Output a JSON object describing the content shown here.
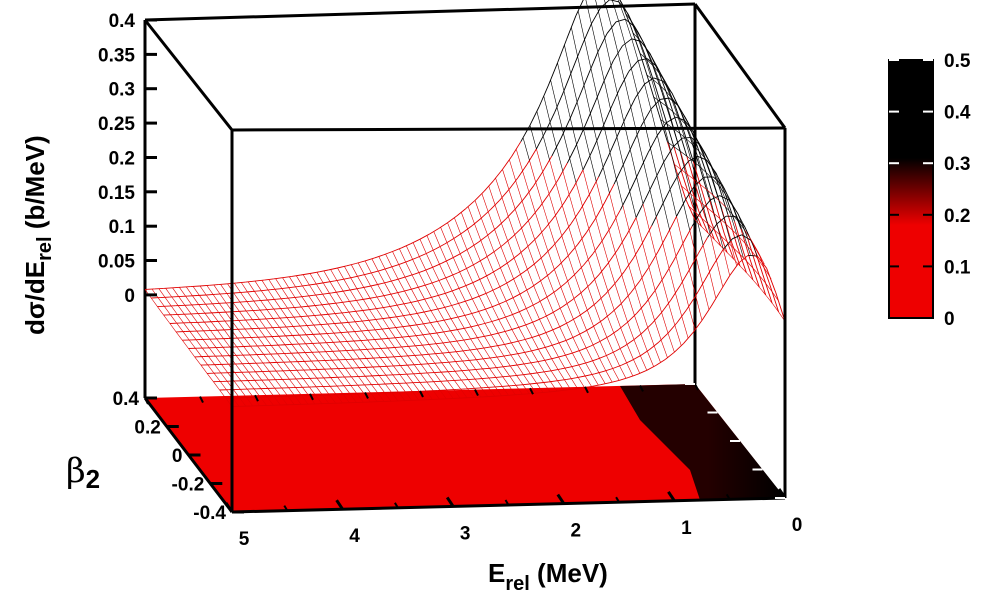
{
  "chart_data": {
    "type": "surface",
    "title": "",
    "zlabel": "dσ/dE_rel (b/MeV)",
    "zlabel_parts": {
      "main": "dσ/dE",
      "sub": "rel",
      "tail": " (b/MeV)"
    },
    "xlabel": "E_rel (MeV)",
    "xlabel_parts": {
      "main": "E",
      "sub": "rel",
      "tail": " (MeV)"
    },
    "ylabel": "β2",
    "ylabel_parts": {
      "main": "β",
      "sub": "2"
    },
    "x_ticks": [
      "5",
      "4",
      "3",
      "2",
      "1",
      "0"
    ],
    "x_tick_values": [
      5,
      4,
      3,
      2,
      1,
      0
    ],
    "y_ticks": [
      "0.4",
      "0.2",
      "0",
      "-0.2",
      "-0.4"
    ],
    "y_tick_values": [
      0.4,
      0.2,
      0,
      -0.2,
      -0.4
    ],
    "z_ticks": [
      "0.4",
      "0.35",
      "0.3",
      "0.25",
      "0.2",
      "0.15",
      "0.1",
      "0.05",
      "0"
    ],
    "z_tick_values": [
      0.4,
      0.35,
      0.3,
      0.25,
      0.2,
      0.15,
      0.1,
      0.05,
      0
    ],
    "xlim": [
      0,
      5
    ],
    "ylim": [
      -0.4,
      0.4
    ],
    "zlim": [
      -0.15,
      0.4
    ],
    "colorbar": {
      "ticks": [
        "0.5",
        "0.4",
        "0.3",
        "0.2",
        "0.1",
        "0"
      ],
      "values": [
        0.5,
        0.4,
        0.3,
        0.2,
        0.1,
        0
      ],
      "range": [
        0,
        0.5
      ],
      "colors": {
        "low": "#ee0000",
        "high": "#000000"
      }
    },
    "surface_model": {
      "peak_energy_at_beta_neg": 0.3,
      "peak_energy_at_beta_pos": 0.85,
      "peak_value_at_beta_neg": 0.19,
      "peak_value_at_beta_pos": 0.41,
      "grid_lines_energy": 18,
      "grid_lines_beta": 14
    }
  }
}
